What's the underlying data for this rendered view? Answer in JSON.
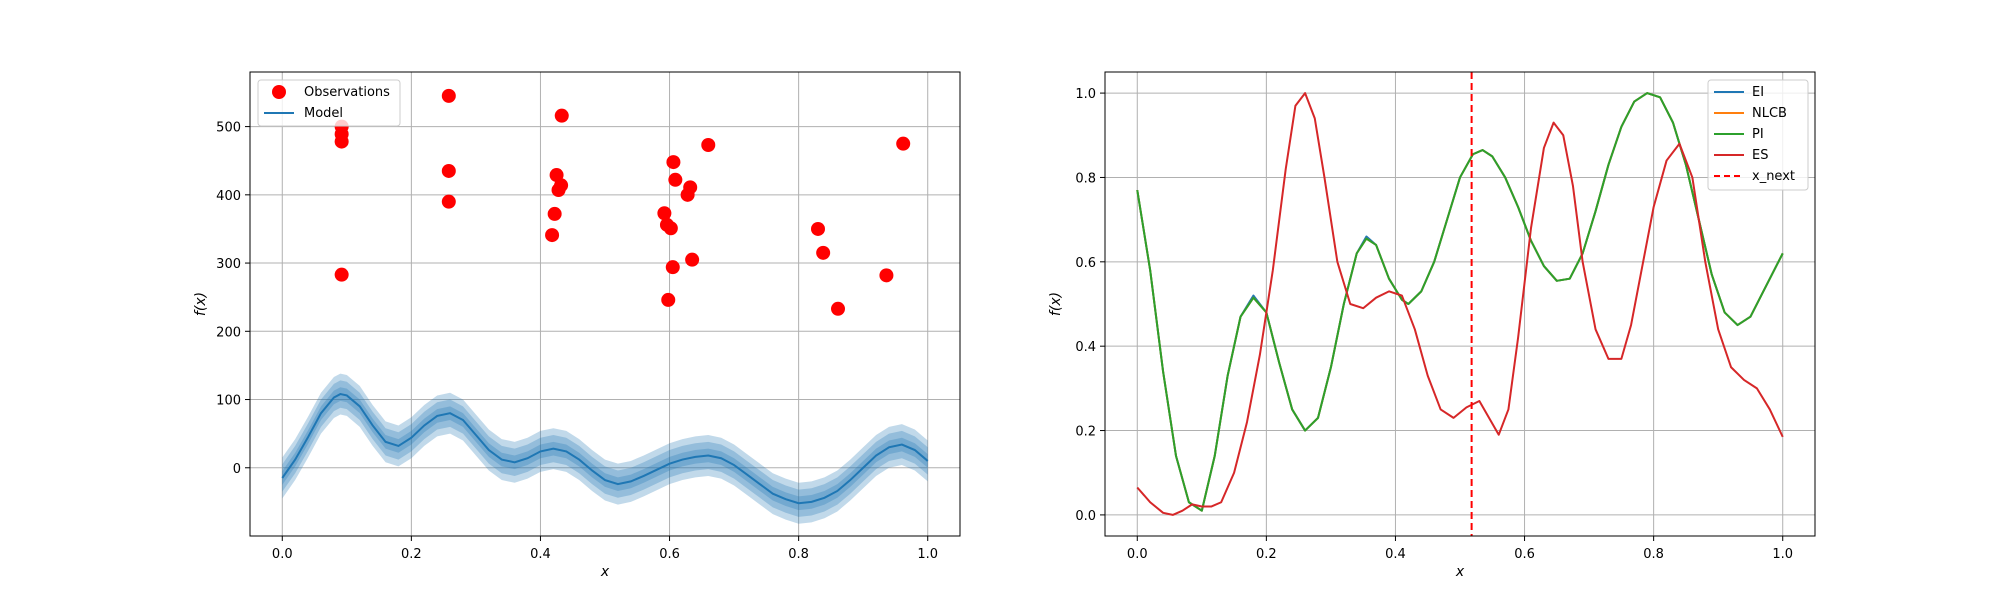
{
  "figure": {
    "background": "#ffffff"
  },
  "chart_data": [
    {
      "type": "scatter",
      "title": "",
      "xlabel": "x",
      "ylabel": "f(x)",
      "xlim": [
        -0.05,
        1.05
      ],
      "ylim": [
        -100,
        580
      ],
      "xticks": [
        0.0,
        0.2,
        0.4,
        0.6,
        0.8,
        1.0
      ],
      "xtick_labels": [
        "0.0",
        "0.2",
        "0.4",
        "0.6",
        "0.8",
        "1.0"
      ],
      "yticks": [
        0,
        100,
        200,
        300,
        400,
        500
      ],
      "ytick_labels": [
        "0",
        "100",
        "200",
        "300",
        "400",
        "500"
      ],
      "grid": true,
      "legend": {
        "position": "upper-left",
        "entries": [
          {
            "label": "Observations",
            "marker": "circle",
            "color": "#ff0000"
          },
          {
            "label": "Model",
            "marker": "line",
            "color": "#1f77b4"
          }
        ]
      },
      "series": [
        {
          "name": "Observations",
          "kind": "scatter",
          "color": "#ff0000",
          "points": [
            [
              0.092,
              500
            ],
            [
              0.092,
              489
            ],
            [
              0.092,
              478
            ],
            [
              0.092,
              283
            ],
            [
              0.258,
              545
            ],
            [
              0.258,
              435
            ],
            [
              0.258,
              390
            ],
            [
              0.418,
              341
            ],
            [
              0.422,
              372
            ],
            [
              0.425,
              429
            ],
            [
              0.428,
              407
            ],
            [
              0.432,
              414
            ],
            [
              0.433,
              516
            ],
            [
              0.592,
              373
            ],
            [
              0.596,
              356
            ],
            [
              0.598,
              246
            ],
            [
              0.602,
              351
            ],
            [
              0.605,
              294
            ],
            [
              0.606,
              448
            ],
            [
              0.609,
              422
            ],
            [
              0.628,
              400
            ],
            [
              0.632,
              411
            ],
            [
              0.635,
              305
            ],
            [
              0.66,
              473
            ],
            [
              0.83,
              350
            ],
            [
              0.838,
              315
            ],
            [
              0.861,
              233
            ],
            [
              0.936,
              282
            ],
            [
              0.962,
              475
            ]
          ]
        },
        {
          "name": "Model",
          "kind": "line-band",
          "color": "#1f77b4",
          "band_widths": [
            10,
            20,
            30
          ],
          "x": [
            0.0,
            0.02,
            0.04,
            0.06,
            0.08,
            0.09,
            0.1,
            0.12,
            0.14,
            0.16,
            0.18,
            0.2,
            0.22,
            0.24,
            0.26,
            0.28,
            0.3,
            0.32,
            0.34,
            0.36,
            0.38,
            0.4,
            0.42,
            0.44,
            0.46,
            0.48,
            0.5,
            0.52,
            0.54,
            0.56,
            0.58,
            0.6,
            0.62,
            0.64,
            0.66,
            0.68,
            0.7,
            0.72,
            0.74,
            0.76,
            0.78,
            0.8,
            0.82,
            0.84,
            0.86,
            0.88,
            0.9,
            0.92,
            0.94,
            0.96,
            0.98,
            1.0
          ],
          "y": [
            -15,
            12,
            45,
            80,
            103,
            108,
            106,
            90,
            62,
            38,
            32,
            44,
            62,
            76,
            80,
            70,
            48,
            26,
            12,
            8,
            14,
            24,
            28,
            24,
            12,
            -4,
            -18,
            -24,
            -20,
            -12,
            -3,
            6,
            12,
            16,
            18,
            14,
            4,
            -10,
            -24,
            -38,
            -46,
            -52,
            -50,
            -44,
            -34,
            -18,
            0,
            18,
            30,
            34,
            26,
            10
          ]
        }
      ]
    },
    {
      "type": "line",
      "title": "",
      "xlabel": "x",
      "ylabel": "f(x)",
      "xlim": [
        -0.05,
        1.05
      ],
      "ylim": [
        -0.05,
        1.05
      ],
      "xticks": [
        0.0,
        0.2,
        0.4,
        0.6,
        0.8,
        1.0
      ],
      "xtick_labels": [
        "0.0",
        "0.2",
        "0.4",
        "0.6",
        "0.8",
        "1.0"
      ],
      "yticks": [
        0.0,
        0.2,
        0.4,
        0.6,
        0.8,
        1.0
      ],
      "ytick_labels": [
        "0.0",
        "0.2",
        "0.4",
        "0.6",
        "0.8",
        "1.0"
      ],
      "grid": true,
      "legend": {
        "position": "upper-right",
        "entries": [
          {
            "label": "EI",
            "marker": "line",
            "color": "#1f77b4"
          },
          {
            "label": "NLCB",
            "marker": "line",
            "color": "#ff7f0e"
          },
          {
            "label": "PI",
            "marker": "line",
            "color": "#2ca02c"
          },
          {
            "label": "ES",
            "marker": "line",
            "color": "#d62728"
          },
          {
            "label": "x_next",
            "marker": "dashed",
            "color": "#ff0000"
          }
        ]
      },
      "vline": {
        "name": "x_next",
        "x": 0.518,
        "color": "#ff0000"
      },
      "series": [
        {
          "name": "EI",
          "color": "#1f77b4",
          "x": [
            0.0,
            0.02,
            0.04,
            0.06,
            0.08,
            0.1,
            0.12,
            0.14,
            0.16,
            0.18,
            0.2,
            0.22,
            0.24,
            0.26,
            0.28,
            0.3,
            0.32,
            0.34,
            0.355,
            0.37,
            0.39,
            0.41,
            0.42,
            0.44,
            0.46,
            0.48,
            0.5,
            0.52,
            0.535,
            0.55,
            0.57,
            0.59,
            0.61,
            0.63,
            0.65,
            0.67,
            0.69,
            0.71,
            0.73,
            0.75,
            0.77,
            0.79,
            0.81,
            0.83,
            0.85,
            0.87,
            0.89,
            0.91,
            0.93,
            0.95,
            0.97,
            1.0
          ],
          "y": [
            0.77,
            0.58,
            0.34,
            0.14,
            0.03,
            0.01,
            0.14,
            0.33,
            0.47,
            0.52,
            0.48,
            0.36,
            0.25,
            0.2,
            0.23,
            0.35,
            0.5,
            0.62,
            0.66,
            0.64,
            0.56,
            0.51,
            0.5,
            0.53,
            0.6,
            0.7,
            0.8,
            0.855,
            0.865,
            0.85,
            0.8,
            0.73,
            0.65,
            0.59,
            0.555,
            0.56,
            0.62,
            0.72,
            0.83,
            0.92,
            0.98,
            1.0,
            0.99,
            0.93,
            0.83,
            0.7,
            0.57,
            0.48,
            0.45,
            0.47,
            0.53,
            0.62
          ]
        },
        {
          "name": "NLCB",
          "color": "#ff7f0e",
          "x": [
            0.0,
            0.02,
            0.04,
            0.06,
            0.08,
            0.1,
            0.12,
            0.14,
            0.16,
            0.18,
            0.2,
            0.22,
            0.24,
            0.26,
            0.28,
            0.3,
            0.32,
            0.34,
            0.355,
            0.37,
            0.39,
            0.41,
            0.42,
            0.44,
            0.46,
            0.48,
            0.5,
            0.52,
            0.535,
            0.55,
            0.57,
            0.59,
            0.61,
            0.63,
            0.65,
            0.67,
            0.69,
            0.71,
            0.73,
            0.75,
            0.77,
            0.79,
            0.81,
            0.83,
            0.85,
            0.87,
            0.89,
            0.91,
            0.93,
            0.95,
            0.97,
            1.0
          ],
          "y": [
            0.77,
            0.58,
            0.34,
            0.14,
            0.03,
            0.01,
            0.14,
            0.33,
            0.47,
            0.515,
            0.48,
            0.36,
            0.25,
            0.2,
            0.23,
            0.35,
            0.5,
            0.62,
            0.655,
            0.64,
            0.56,
            0.51,
            0.5,
            0.53,
            0.6,
            0.7,
            0.8,
            0.855,
            0.865,
            0.85,
            0.8,
            0.73,
            0.65,
            0.59,
            0.555,
            0.56,
            0.62,
            0.72,
            0.83,
            0.92,
            0.98,
            1.0,
            0.99,
            0.93,
            0.83,
            0.7,
            0.57,
            0.48,
            0.45,
            0.47,
            0.53,
            0.62
          ]
        },
        {
          "name": "PI",
          "color": "#2ca02c",
          "x": [
            0.0,
            0.02,
            0.04,
            0.06,
            0.08,
            0.1,
            0.12,
            0.14,
            0.16,
            0.18,
            0.2,
            0.22,
            0.24,
            0.26,
            0.28,
            0.3,
            0.32,
            0.34,
            0.355,
            0.37,
            0.39,
            0.41,
            0.42,
            0.44,
            0.46,
            0.48,
            0.5,
            0.52,
            0.535,
            0.55,
            0.57,
            0.59,
            0.61,
            0.63,
            0.65,
            0.67,
            0.69,
            0.71,
            0.73,
            0.75,
            0.77,
            0.79,
            0.81,
            0.83,
            0.85,
            0.87,
            0.89,
            0.91,
            0.93,
            0.95,
            0.97,
            1.0
          ],
          "y": [
            0.77,
            0.58,
            0.34,
            0.14,
            0.03,
            0.01,
            0.14,
            0.33,
            0.47,
            0.515,
            0.48,
            0.36,
            0.25,
            0.2,
            0.23,
            0.35,
            0.5,
            0.62,
            0.655,
            0.64,
            0.56,
            0.51,
            0.5,
            0.53,
            0.6,
            0.7,
            0.8,
            0.855,
            0.865,
            0.85,
            0.8,
            0.73,
            0.65,
            0.59,
            0.555,
            0.56,
            0.62,
            0.72,
            0.83,
            0.92,
            0.98,
            1.0,
            0.99,
            0.93,
            0.83,
            0.7,
            0.57,
            0.48,
            0.45,
            0.47,
            0.53,
            0.62
          ]
        },
        {
          "name": "ES",
          "color": "#d62728",
          "x": [
            0.0,
            0.02,
            0.04,
            0.055,
            0.07,
            0.085,
            0.1,
            0.115,
            0.13,
            0.15,
            0.17,
            0.19,
            0.21,
            0.23,
            0.245,
            0.26,
            0.275,
            0.29,
            0.31,
            0.33,
            0.35,
            0.37,
            0.39,
            0.41,
            0.43,
            0.45,
            0.47,
            0.49,
            0.51,
            0.53,
            0.545,
            0.56,
            0.575,
            0.59,
            0.61,
            0.63,
            0.645,
            0.66,
            0.675,
            0.69,
            0.71,
            0.73,
            0.75,
            0.765,
            0.78,
            0.8,
            0.82,
            0.84,
            0.86,
            0.88,
            0.9,
            0.92,
            0.94,
            0.96,
            0.98,
            1.0
          ],
          "y": [
            0.065,
            0.03,
            0.005,
            0.0,
            0.01,
            0.025,
            0.02,
            0.02,
            0.03,
            0.1,
            0.22,
            0.38,
            0.58,
            0.82,
            0.97,
            1.0,
            0.94,
            0.8,
            0.6,
            0.5,
            0.49,
            0.515,
            0.53,
            0.52,
            0.44,
            0.33,
            0.25,
            0.23,
            0.255,
            0.27,
            0.23,
            0.19,
            0.25,
            0.42,
            0.68,
            0.87,
            0.93,
            0.9,
            0.78,
            0.6,
            0.44,
            0.37,
            0.37,
            0.45,
            0.57,
            0.73,
            0.84,
            0.88,
            0.8,
            0.6,
            0.44,
            0.35,
            0.32,
            0.3,
            0.25,
            0.185
          ]
        }
      ]
    }
  ]
}
